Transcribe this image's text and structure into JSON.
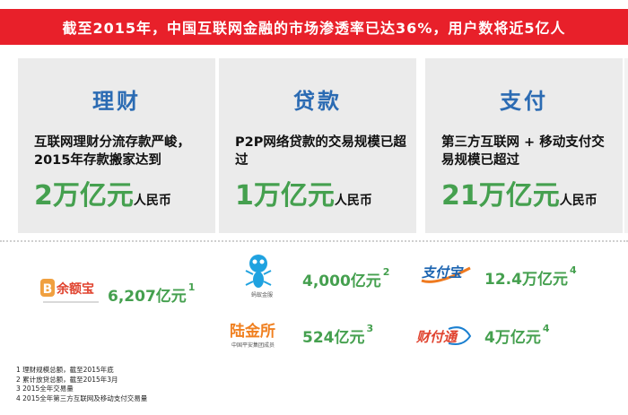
{
  "banner": {
    "text": "截至2015年，中国互联网金融的市场渗透率已达36%，用户数将近5亿人"
  },
  "cards": [
    {
      "title": "理财",
      "text": "互联网理财分流存款严峻，2015年存款搬家达到",
      "figure": "2万亿元",
      "unit": "人民币"
    },
    {
      "title": "贷款",
      "text": "P2P网络贷款的交易规模已超过",
      "figure": "1万亿元",
      "unit": "人民币"
    },
    {
      "title": "支付",
      "text": "第三方互联网 + 移动支付交易规模已超过",
      "figure": "21万亿元",
      "unit": "人民币"
    }
  ],
  "products": [
    {
      "logo_text": "余额宝",
      "logo_prefix": "B",
      "value": "6,207亿元",
      "note": "1"
    },
    {
      "logo_text": "蚂蚁金服",
      "value": "4,000亿元",
      "note": "2"
    },
    {
      "logo_text": "支付宝",
      "value": "12.4万亿元",
      "note": "4"
    },
    {
      "logo_text": "陆金所",
      "logo_sub": "中国平安集团成员",
      "value": "524亿元",
      "note": "3"
    },
    {
      "logo_text": "财付通",
      "value": "4万亿元",
      "note": "4"
    }
  ],
  "footnotes": [
    "1 理财规模总额，截至2015年底",
    "2 累计放贷总额，截至2015年3月",
    "3 2015全年交易量",
    "4 2015全年第三方互联网及移动支付交易量"
  ],
  "colors": {
    "banner": "#e8202a",
    "title_blue": "#2b6bb3",
    "figure_green": "#45a04f",
    "card_bg": "#ebebeb"
  }
}
